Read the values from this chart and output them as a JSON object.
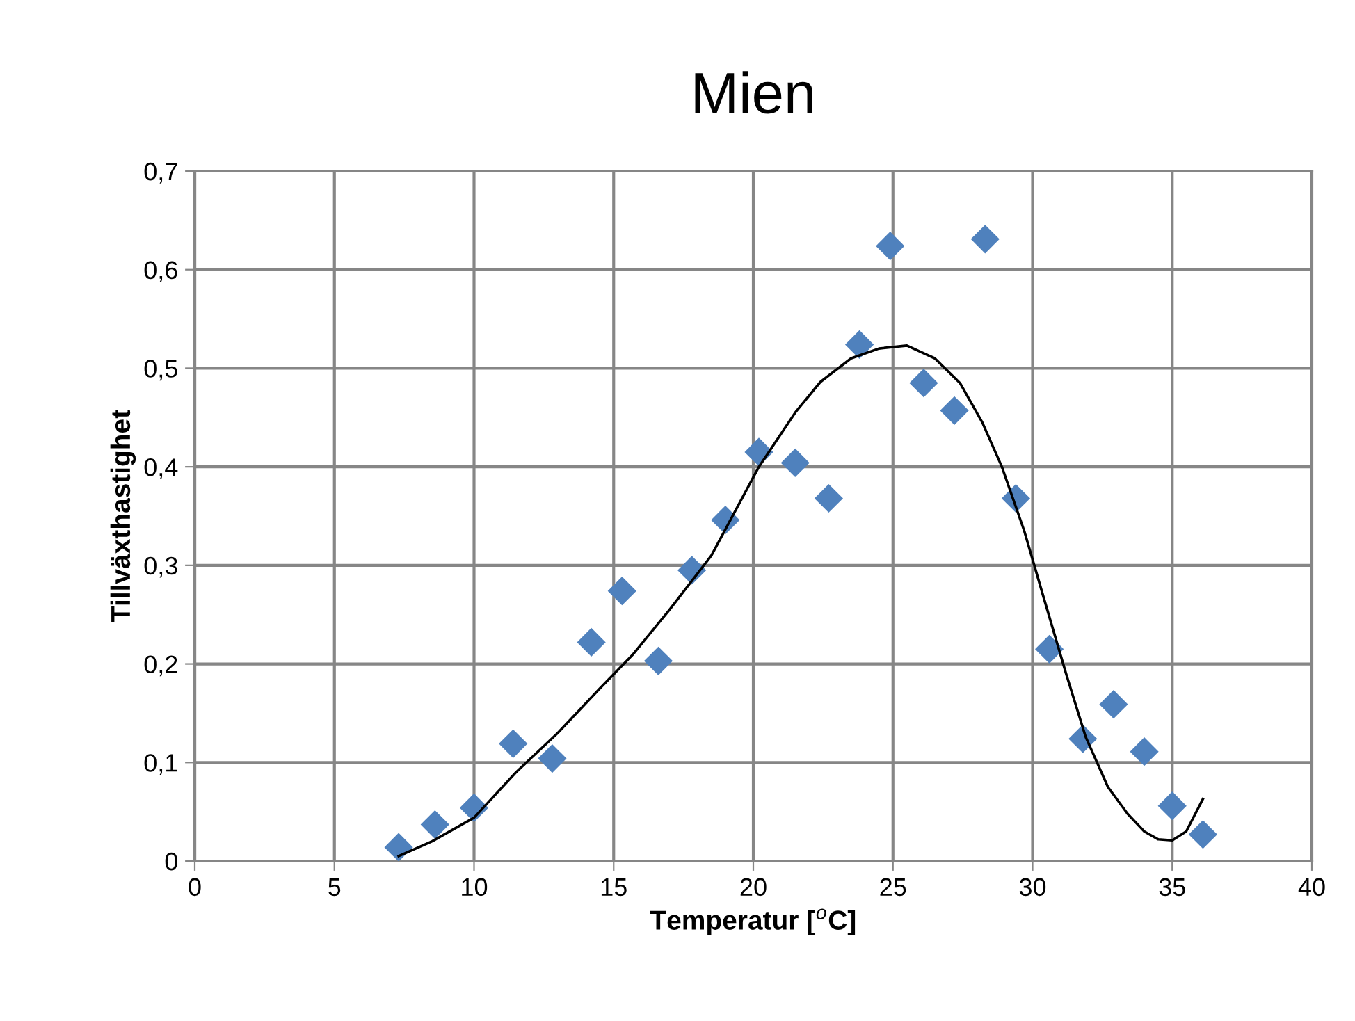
{
  "chart_data": {
    "type": "scatter",
    "title": "Mien",
    "xlabel": "Temperatur [$^{o}$C]",
    "ylabel": "Tillväxthastighet",
    "xlim": [
      0,
      40
    ],
    "xticks": [
      0,
      5,
      10,
      15,
      20,
      25,
      30,
      35,
      40
    ],
    "ylim": [
      0,
      0.7
    ],
    "yticks": [
      0,
      {
        "value": 0.1,
        "label": "0,1"
      },
      {
        "value": 0.2,
        "label": "0,2"
      },
      {
        "value": 0.3,
        "label": "0,3"
      },
      {
        "value": 0.4,
        "label": "0,4"
      },
      {
        "value": 0.5,
        "label": "0,5"
      },
      {
        "value": 0.6,
        "label": "0,6"
      },
      {
        "value": 0.7,
        "label": "0,7"
      }
    ],
    "grid": true,
    "legend": false,
    "series": [
      {
        "color": "#4f81bd",
        "marker": "diamond",
        "x": [
          7.3,
          8.6,
          10.0,
          11.4,
          12.8,
          14.2,
          15.3,
          16.6,
          17.8,
          19.0,
          20.2,
          21.5,
          22.7,
          23.8,
          24.9,
          26.1,
          27.2,
          28.3,
          29.4,
          30.6,
          31.8,
          32.9,
          34.0,
          35.0,
          36.1
        ],
        "values": [
          0.014,
          0.037,
          0.054,
          0.119,
          0.104,
          0.222,
          0.274,
          0.203,
          0.295,
          0.346,
          0.415,
          0.404,
          0.368,
          0.524,
          0.624,
          0.485,
          0.457,
          0.631,
          0.368,
          0.215,
          0.124,
          0.159,
          0.111,
          0.056,
          0.027
        ]
      },
      {
        "type": "line",
        "color": "#000000",
        "marker": "none",
        "line_style": "solid",
        "x": [
          7.3,
          8.5,
          10.0,
          11.5,
          13.0,
          14.5,
          15.7,
          17.0,
          18.5,
          20.2,
          21.5,
          22.4,
          23.5,
          24.5,
          25.5,
          26.5,
          27.4,
          28.2,
          28.9,
          29.7,
          30.4,
          31.2,
          31.9,
          32.7,
          33.4,
          34.0,
          34.5,
          35.0,
          35.5,
          36.1
        ],
        "values": [
          0.005,
          0.02,
          0.044,
          0.09,
          0.13,
          0.175,
          0.21,
          0.255,
          0.31,
          0.4,
          0.455,
          0.486,
          0.51,
          0.52,
          0.523,
          0.51,
          0.485,
          0.445,
          0.4,
          0.335,
          0.267,
          0.19,
          0.126,
          0.075,
          0.048,
          0.03,
          0.022,
          0.021,
          0.03,
          0.063
        ]
      }
    ]
  }
}
